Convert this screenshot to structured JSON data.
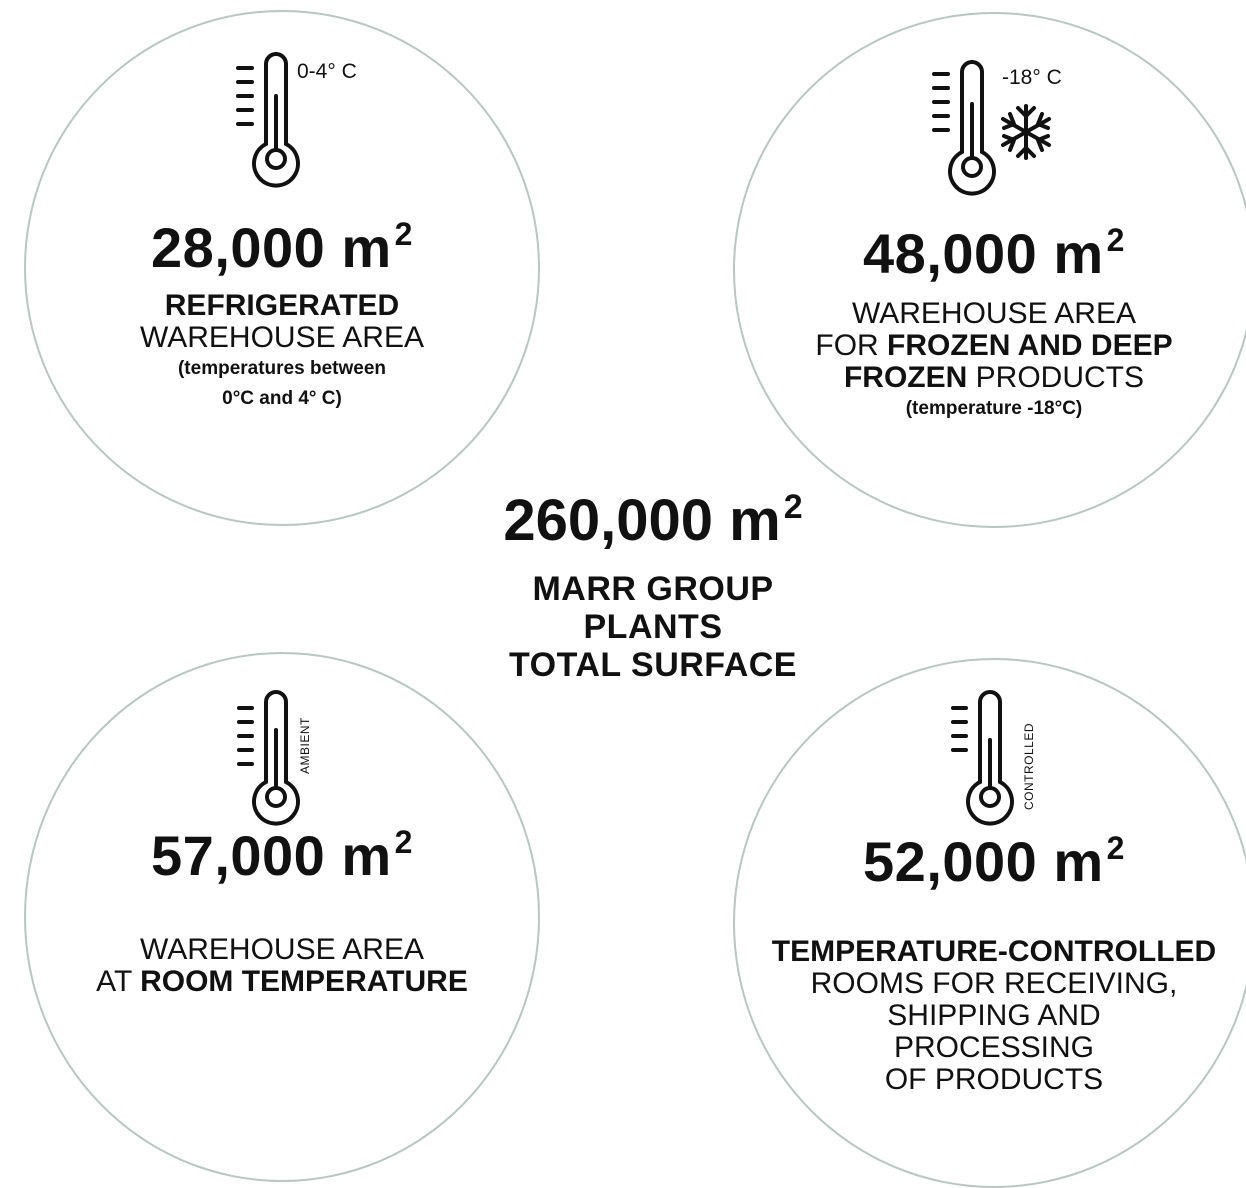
{
  "area_unit": "m",
  "unit_exponent": "2",
  "refrigerated": {
    "icon": "thermometer-icon",
    "temp_label": "0-4° C",
    "area": "28,000",
    "title_bold": "REFRIGERATED",
    "title_rest": "WAREHOUSE AREA",
    "note_line1": "(temperatures between",
    "note_line2": "0°C and 4° C)"
  },
  "frozen": {
    "icon": "thermometer-snowflake-icon",
    "temp_label": "-18° C",
    "area": "48,000",
    "line1": "WAREHOUSE AREA",
    "line2_prefix": "FOR ",
    "line2_bold": "FROZEN AND DEEP",
    "line3_bold": "FROZEN",
    "line3_rest": " PRODUCTS",
    "note": "(temperature -18°C)"
  },
  "total": {
    "area": "260,000",
    "line1": "MARR GROUP",
    "line2": "PLANTS",
    "line3": "TOTAL SURFACE"
  },
  "ambient": {
    "icon": "thermometer-icon",
    "temp_label": "AMBIENT",
    "area": "57,000",
    "line1": "WAREHOUSE AREA",
    "line2_prefix": "AT ",
    "line2_bold": "ROOM TEMPERATURE"
  },
  "controlled": {
    "icon": "thermometer-icon",
    "temp_label": "CONTROLLED",
    "area": "52,000",
    "line1_bold": "TEMPERATURE-CONTROLLED",
    "line2": "ROOMS FOR RECEIVING,",
    "line3": "SHIPPING AND",
    "line4": "PROCESSING",
    "line5": "OF PRODUCTS"
  }
}
